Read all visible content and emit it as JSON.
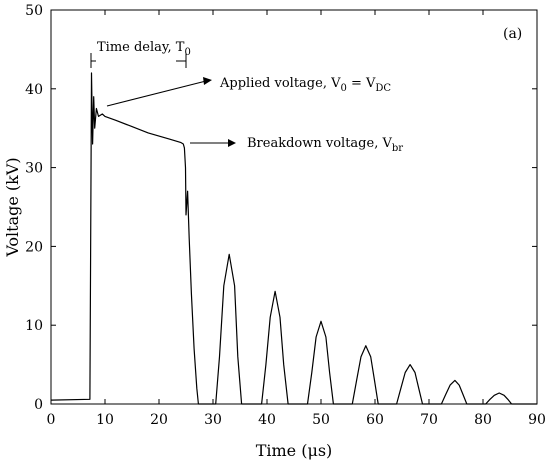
{
  "chart_data": {
    "type": "line",
    "panel_label": "(a)",
    "xlabel": "Time (μs)",
    "ylabel": "Voltage (kV)",
    "xlim": [
      0,
      90
    ],
    "ylim": [
      0,
      50
    ],
    "xticks": [
      0,
      10,
      20,
      30,
      40,
      50,
      60,
      70,
      80,
      90
    ],
    "yticks": [
      0,
      10,
      20,
      30,
      40,
      50
    ],
    "grid": false,
    "legend": "none",
    "series": [
      {
        "x": [
          0,
          7.2,
          7.5,
          7.7,
          7.9,
          8.1,
          8.4,
          8.8,
          9.5,
          10,
          12,
          15,
          18,
          20,
          22,
          24,
          24.5,
          24.7,
          24.9,
          25,
          25.3,
          25.6,
          26,
          26.5,
          27,
          27.3,
          30.5,
          31.2,
          32,
          33,
          34,
          34.6,
          35.3,
          39,
          39.8,
          40.6,
          41.5,
          42.4,
          43.1,
          43.9,
          47.5,
          48.3,
          49.1,
          50,
          50.9,
          51.6,
          52.3,
          55.8,
          56.6,
          57.4,
          58.3,
          59.2,
          59.9,
          60.6,
          64,
          64.8,
          65.6,
          66.5,
          67.4,
          68.1,
          68.8,
          72.3,
          73.1,
          73.9,
          74.8,
          75.6,
          76.3,
          77,
          80.5,
          81.3,
          82.1,
          83,
          83.9,
          84.6,
          85.3,
          90
        ],
        "y": [
          0.5,
          0.6,
          42,
          33,
          39,
          35,
          37.5,
          36.5,
          36.8,
          36.5,
          36,
          35.2,
          34.4,
          34,
          33.6,
          33.2,
          33,
          32.5,
          30,
          24,
          27,
          21,
          14,
          7,
          2,
          0,
          0,
          6,
          15,
          19,
          15,
          6,
          0,
          0,
          5,
          11,
          14.3,
          11,
          5,
          0,
          0,
          4,
          8.5,
          10.5,
          8.5,
          4,
          0,
          0,
          3,
          6,
          7.4,
          6,
          3,
          0,
          0,
          2,
          4,
          5,
          4,
          2,
          0,
          0,
          1.2,
          2.4,
          3,
          2.4,
          1.2,
          0,
          0,
          0.6,
          1.1,
          1.4,
          1.1,
          0.6,
          0,
          0
        ]
      }
    ],
    "annotations": [
      {
        "text_main": "Time delay, T",
        "text_sub": "0"
      },
      {
        "text_main": "Applied  voltage, V",
        "text_sub1": "0",
        "text_mid": " = V",
        "text_sub2": "DC"
      },
      {
        "text_main": "Breakdown voltage, V",
        "text_sub": "br"
      }
    ]
  }
}
